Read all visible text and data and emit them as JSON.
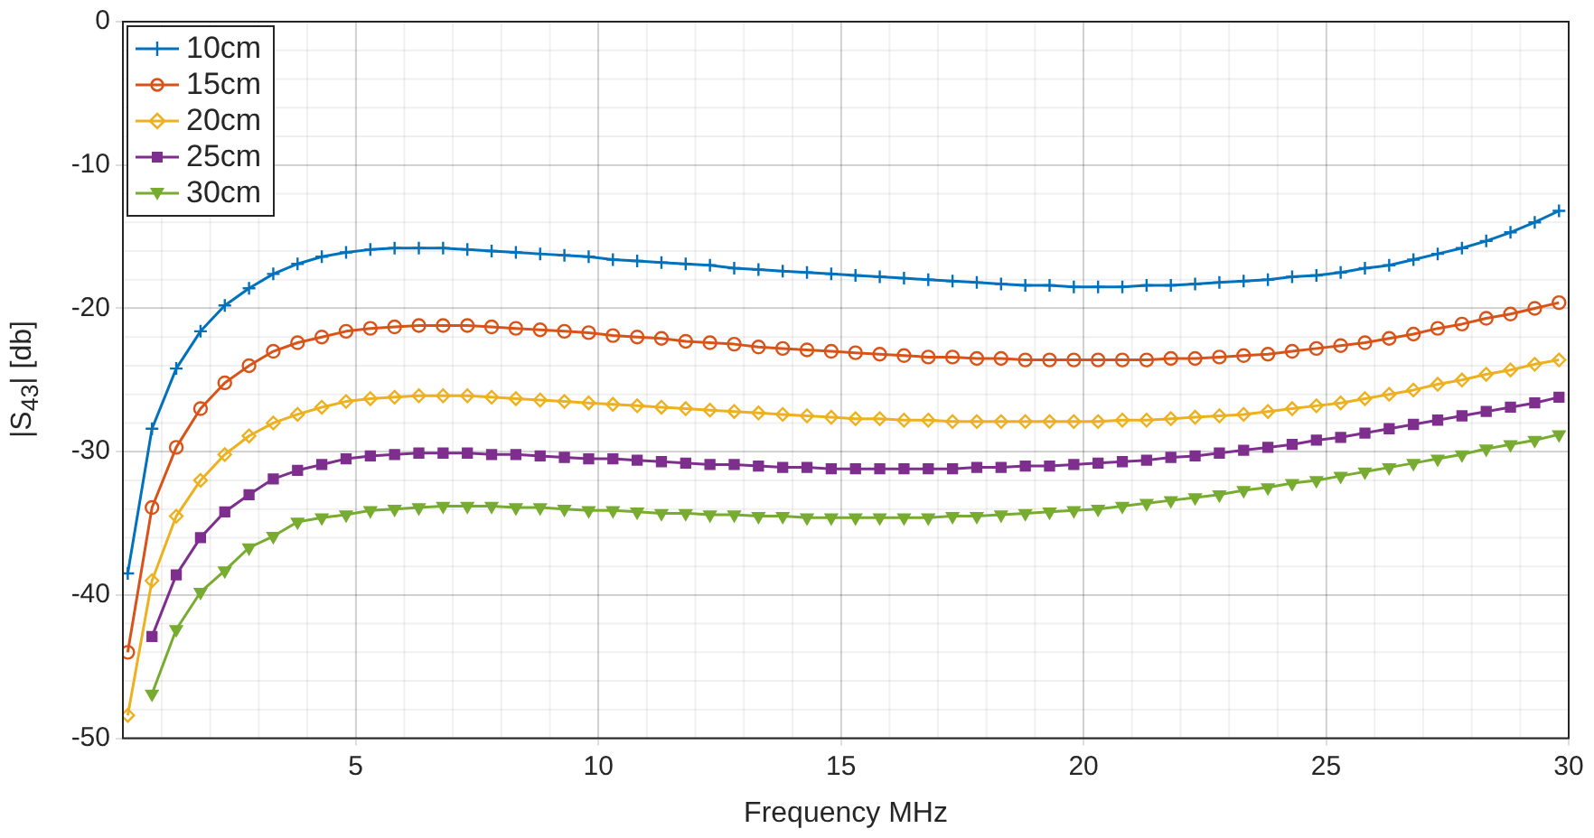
{
  "chart_data": {
    "type": "line",
    "xlabel": "Frequency MHz",
    "ylabel": "|S$_{43}$| [db]",
    "x": [
      0.3,
      0.8,
      1.3,
      1.8,
      2.3,
      2.8,
      3.3,
      3.8,
      4.3,
      4.8,
      5.3,
      5.8,
      6.3,
      6.8,
      7.3,
      7.8,
      8.3,
      8.8,
      9.3,
      9.8,
      10.3,
      10.8,
      11.3,
      11.8,
      12.3,
      12.8,
      13.3,
      13.8,
      14.3,
      14.8,
      15.3,
      15.8,
      16.3,
      16.8,
      17.3,
      17.8,
      18.3,
      18.8,
      19.3,
      19.8,
      20.3,
      20.8,
      21.3,
      21.8,
      22.3,
      22.8,
      23.3,
      23.8,
      24.3,
      24.8,
      25.3,
      25.8,
      26.3,
      26.8,
      27.3,
      27.8,
      28.3,
      28.8,
      29.3,
      29.8
    ],
    "series": [
      {
        "name": "10cm",
        "color": "#0072bd",
        "marker": "cross",
        "values": [
          -38.5,
          -28.4,
          -24.2,
          -21.6,
          -19.8,
          -18.6,
          -17.6,
          -16.9,
          -16.4,
          -16.1,
          -15.9,
          -15.8,
          -15.8,
          -15.8,
          -15.9,
          -16.0,
          -16.1,
          -16.2,
          -16.3,
          -16.4,
          -16.6,
          -16.7,
          -16.8,
          -16.9,
          -17.0,
          -17.2,
          -17.3,
          -17.4,
          -17.5,
          -17.6,
          -17.7,
          -17.8,
          -17.9,
          -18.0,
          -18.1,
          -18.2,
          -18.3,
          -18.4,
          -18.4,
          -18.5,
          -18.5,
          -18.5,
          -18.4,
          -18.4,
          -18.3,
          -18.2,
          -18.1,
          -18.0,
          -17.8,
          -17.7,
          -17.5,
          -17.2,
          -17.0,
          -16.6,
          -16.2,
          -15.8,
          -15.3,
          -14.7,
          -14.0,
          -13.2
        ]
      },
      {
        "name": "15cm",
        "color": "#d95319",
        "marker": "circle",
        "values": [
          -44.0,
          -33.9,
          -29.7,
          -27.0,
          -25.2,
          -24.0,
          -23.0,
          -22.4,
          -22.0,
          -21.6,
          -21.4,
          -21.3,
          -21.2,
          -21.2,
          -21.2,
          -21.3,
          -21.4,
          -21.5,
          -21.6,
          -21.7,
          -21.9,
          -22.0,
          -22.1,
          -22.3,
          -22.4,
          -22.5,
          -22.7,
          -22.8,
          -22.9,
          -23.0,
          -23.1,
          -23.2,
          -23.3,
          -23.4,
          -23.4,
          -23.5,
          -23.5,
          -23.6,
          -23.6,
          -23.6,
          -23.6,
          -23.6,
          -23.6,
          -23.5,
          -23.5,
          -23.4,
          -23.3,
          -23.2,
          -23.0,
          -22.8,
          -22.6,
          -22.4,
          -22.1,
          -21.8,
          -21.4,
          -21.1,
          -20.7,
          -20.4,
          -20.0,
          -19.6
        ]
      },
      {
        "name": "20cm",
        "color": "#edb120",
        "marker": "diamond",
        "values": [
          -48.4,
          -39.0,
          -34.5,
          -32.0,
          -30.2,
          -28.9,
          -28.0,
          -27.4,
          -26.9,
          -26.5,
          -26.3,
          -26.2,
          -26.1,
          -26.1,
          -26.1,
          -26.2,
          -26.3,
          -26.4,
          -26.5,
          -26.6,
          -26.7,
          -26.8,
          -26.9,
          -27.0,
          -27.1,
          -27.2,
          -27.3,
          -27.4,
          -27.5,
          -27.6,
          -27.7,
          -27.7,
          -27.8,
          -27.8,
          -27.9,
          -27.9,
          -27.9,
          -27.9,
          -27.9,
          -27.9,
          -27.9,
          -27.8,
          -27.8,
          -27.7,
          -27.6,
          -27.5,
          -27.4,
          -27.2,
          -27.0,
          -26.8,
          -26.6,
          -26.3,
          -26.0,
          -25.7,
          -25.3,
          -25.0,
          -24.6,
          -24.3,
          -23.9,
          -23.6
        ]
      },
      {
        "name": "25cm",
        "color": "#7e2f8e",
        "marker": "square",
        "values": [
          null,
          -42.9,
          -38.6,
          -36.0,
          -34.2,
          -33.0,
          -31.9,
          -31.3,
          -30.9,
          -30.5,
          -30.3,
          -30.2,
          -30.1,
          -30.1,
          -30.1,
          -30.2,
          -30.2,
          -30.3,
          -30.4,
          -30.5,
          -30.5,
          -30.6,
          -30.7,
          -30.8,
          -30.9,
          -30.9,
          -31.0,
          -31.1,
          -31.1,
          -31.2,
          -31.2,
          -31.2,
          -31.2,
          -31.2,
          -31.2,
          -31.1,
          -31.1,
          -31.0,
          -31.0,
          -30.9,
          -30.8,
          -30.7,
          -30.6,
          -30.4,
          -30.3,
          -30.1,
          -29.9,
          -29.7,
          -29.5,
          -29.2,
          -29.0,
          -28.7,
          -28.4,
          -28.1,
          -27.8,
          -27.5,
          -27.2,
          -26.9,
          -26.6,
          -26.2
        ]
      },
      {
        "name": "30cm",
        "color": "#77ac30",
        "marker": "triangle",
        "values": [
          null,
          -46.9,
          -42.4,
          -39.8,
          -38.3,
          -36.7,
          -35.9,
          -34.9,
          -34.6,
          -34.4,
          -34.1,
          -34.0,
          -33.9,
          -33.8,
          -33.8,
          -33.8,
          -33.9,
          -33.9,
          -34.0,
          -34.1,
          -34.1,
          -34.2,
          -34.3,
          -34.3,
          -34.4,
          -34.4,
          -34.5,
          -34.5,
          -34.6,
          -34.6,
          -34.6,
          -34.6,
          -34.6,
          -34.6,
          -34.5,
          -34.5,
          -34.4,
          -34.3,
          -34.2,
          -34.1,
          -34.0,
          -33.8,
          -33.6,
          -33.4,
          -33.2,
          -33.0,
          -32.7,
          -32.5,
          -32.2,
          -32.0,
          -31.7,
          -31.4,
          -31.1,
          -30.8,
          -30.5,
          -30.2,
          -29.8,
          -29.5,
          -29.2,
          -28.8
        ]
      }
    ],
    "xlim": [
      0.2,
      30
    ],
    "xticks": [
      5,
      10,
      15,
      20,
      25,
      30
    ],
    "ylim": [
      -50,
      0
    ],
    "yticks": [
      -50,
      -40,
      -30,
      -20,
      -10,
      0
    ],
    "grid": true,
    "legend": "top left",
    "line_style": "solid"
  }
}
